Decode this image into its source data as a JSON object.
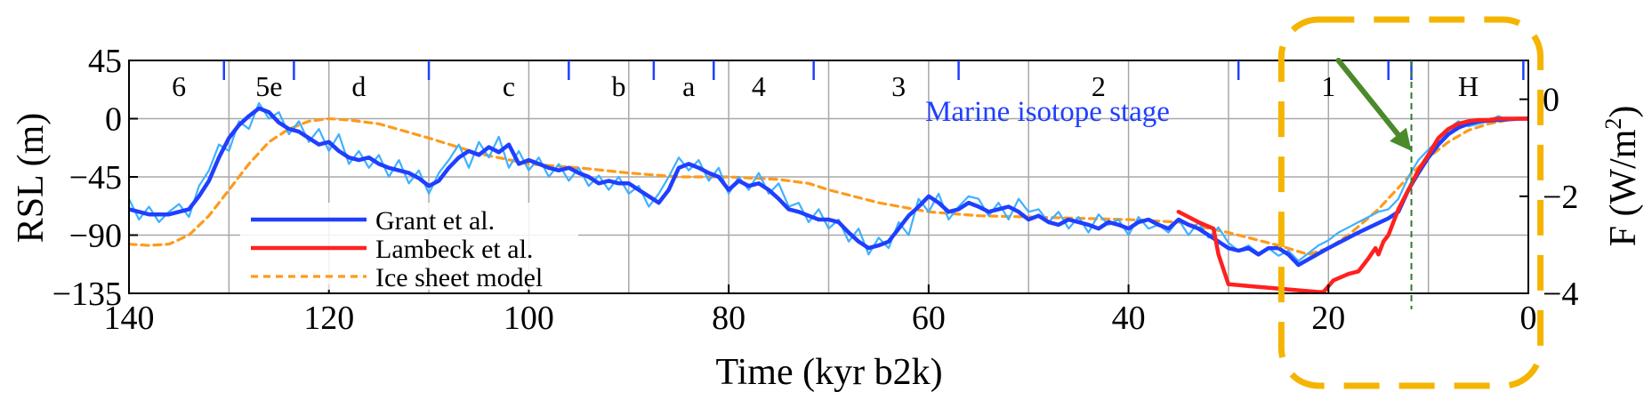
{
  "chart_data": {
    "type": "line",
    "title": "",
    "xlabel": "Time (kyr b2k)",
    "ylabel": "RSL (m)",
    "ylabel_right_base": "F (W/m",
    "ylabel_right_sup": "2",
    "ylabel_right_close": ")",
    "xlim": [
      140,
      0
    ],
    "ylim": [
      -135,
      45
    ],
    "ylim_right": [
      -4,
      0.8
    ],
    "x_ticks": [
      140,
      120,
      100,
      80,
      60,
      40,
      20,
      0
    ],
    "x_tick_labels": [
      "140",
      "120",
      "100",
      "80",
      "60",
      "40",
      "20",
      "0"
    ],
    "y_ticks": [
      45,
      0,
      -45,
      -90,
      -135
    ],
    "y_tick_labels": [
      "45",
      "0",
      "−45",
      "−90",
      "−135"
    ],
    "y_right_ticks": [
      0,
      -2,
      -4
    ],
    "y_right_tick_labels": [
      "0",
      "−2",
      "−4"
    ],
    "grid": true,
    "grid_x": [
      130,
      120,
      110,
      100,
      90,
      80,
      70,
      60,
      50,
      40,
      30,
      20,
      10
    ],
    "stage_label": "Marine isotope stage",
    "stages": [
      {
        "label": "6",
        "x": 135
      },
      {
        "label": "5e",
        "x": 126
      },
      {
        "label": "d",
        "x": 117
      },
      {
        "label": "c",
        "x": 102
      },
      {
        "label": "b",
        "x": 91
      },
      {
        "label": "a",
        "x": 84
      },
      {
        "label": "4",
        "x": 77
      },
      {
        "label": "3",
        "x": 63
      },
      {
        "label": "2",
        "x": 43
      },
      {
        "label": "1",
        "x": 20
      },
      {
        "label": "H",
        "x": 6
      }
    ],
    "stage_tick_positions": [
      130.5,
      123.5,
      110,
      96,
      87.5,
      81.5,
      71.5,
      57,
      29,
      14,
      11.7,
      0.5
    ],
    "legend_position": "bottom-left",
    "series": [
      {
        "name": "Grant et al.",
        "role": "smoothed",
        "color": "#1f3fff",
        "x": [
          140,
          138,
          136,
          134,
          133,
          132,
          131,
          130,
          129,
          128,
          127,
          126,
          125,
          124,
          123,
          122,
          121,
          120,
          119,
          118,
          117,
          116,
          115,
          114,
          113,
          112,
          111,
          110,
          109,
          108,
          107,
          106,
          105,
          104,
          103,
          102,
          101,
          100,
          99,
          98,
          97,
          96,
          95,
          94,
          93,
          92,
          91,
          90,
          89,
          88,
          87,
          86,
          85,
          84,
          83,
          82,
          81,
          80,
          79,
          78,
          77,
          76,
          75,
          74,
          73,
          72,
          71,
          70,
          69,
          68,
          67,
          66,
          65,
          64,
          63,
          62,
          61,
          60,
          59,
          58,
          57,
          56,
          55,
          54,
          53,
          52,
          51,
          50,
          49,
          48,
          47,
          46,
          45,
          44,
          43,
          42,
          41,
          40,
          39,
          38,
          37,
          36,
          35,
          34,
          33,
          32,
          31,
          30,
          29,
          28,
          27,
          26,
          25,
          24,
          23
        ],
        "y": [
          -70,
          -74,
          -74,
          -70,
          -60,
          -48,
          -30,
          -15,
          -5,
          2,
          8,
          5,
          -3,
          -8,
          -10,
          -15,
          -20,
          -18,
          -25,
          -30,
          -32,
          -30,
          -35,
          -38,
          -40,
          -42,
          -46,
          -52,
          -48,
          -38,
          -30,
          -25,
          -28,
          -22,
          -26,
          -20,
          -35,
          -32,
          -35,
          -38,
          -40,
          -38,
          -42,
          -45,
          -50,
          -48,
          -50,
          -50,
          -55,
          -60,
          -65,
          -55,
          -38,
          -35,
          -38,
          -42,
          -45,
          -55,
          -48,
          -52,
          -50,
          -55,
          -62,
          -70,
          -72,
          -75,
          -78,
          -78,
          -80,
          -88,
          -95,
          -100,
          -98,
          -95,
          -85,
          -75,
          -68,
          -60,
          -65,
          -72,
          -70,
          -65,
          -68,
          -72,
          -70,
          -68,
          -72,
          -78,
          -75,
          -80,
          -82,
          -78,
          -80,
          -82,
          -85,
          -80,
          -82,
          -85,
          -80,
          -78,
          -82,
          -85,
          -78,
          -82,
          -85,
          -90,
          -95,
          -100,
          -102,
          -100,
          -105,
          -100,
          -100,
          -105,
          -113
        ]
      },
      {
        "name": "",
        "role": "raw-continuation",
        "color": "#1f3fff",
        "x": [
          23,
          20,
          17,
          14,
          13,
          12,
          11,
          10,
          9,
          8,
          7,
          6,
          5,
          3,
          1,
          0
        ],
        "y": [
          -113,
          -100,
          -88,
          -77,
          -72,
          -55,
          -42,
          -30,
          -20,
          -12,
          -7,
          -4,
          -2,
          -1,
          0,
          0
        ]
      },
      {
        "name": "",
        "role": "raw",
        "color": "#3fb0ff",
        "x": [
          140,
          139,
          138,
          137,
          136,
          135,
          134,
          133,
          132,
          131,
          130,
          129,
          128,
          127,
          126,
          125,
          124,
          123,
          122,
          121,
          120,
          119,
          118,
          117,
          116,
          115,
          114,
          113,
          112,
          111,
          110,
          109,
          108,
          107,
          106,
          105,
          104,
          103,
          102,
          101,
          100,
          99,
          98,
          97,
          96,
          95,
          94,
          93,
          92,
          91,
          90,
          89,
          88,
          87,
          86,
          85,
          84,
          83,
          82,
          81,
          80,
          79,
          78,
          77,
          76,
          75,
          74,
          73,
          72,
          71,
          70,
          69,
          68,
          67,
          66,
          65,
          64,
          63,
          62,
          61,
          60,
          59,
          58,
          57,
          56,
          55,
          54,
          53,
          52,
          51,
          50,
          49,
          48,
          47,
          46,
          45,
          44,
          43,
          42,
          41,
          40,
          39,
          38,
          37,
          36,
          35,
          34,
          33,
          32,
          31,
          30,
          29,
          28,
          27,
          26,
          25,
          24,
          23,
          22,
          21,
          20,
          19,
          18,
          17,
          16,
          15,
          14,
          13,
          12,
          11,
          10,
          9,
          8,
          7,
          6,
          5,
          4,
          3,
          2,
          1,
          0
        ],
        "y": [
          -62,
          -78,
          -68,
          -80,
          -72,
          -66,
          -76,
          -52,
          -40,
          -20,
          -25,
          -2,
          -8,
          12,
          0,
          5,
          -12,
          -2,
          -18,
          -8,
          -25,
          -12,
          -35,
          -25,
          -38,
          -28,
          -45,
          -32,
          -50,
          -40,
          -58,
          -42,
          -32,
          -20,
          -38,
          -18,
          -30,
          -14,
          -38,
          -25,
          -40,
          -30,
          -45,
          -35,
          -48,
          -38,
          -52,
          -44,
          -55,
          -45,
          -58,
          -52,
          -68,
          -58,
          -45,
          -30,
          -40,
          -32,
          -48,
          -38,
          -58,
          -45,
          -55,
          -42,
          -58,
          -50,
          -68,
          -65,
          -80,
          -70,
          -85,
          -78,
          -95,
          -85,
          -105,
          -92,
          -100,
          -80,
          -90,
          -62,
          -72,
          -58,
          -78,
          -68,
          -60,
          -62,
          -75,
          -65,
          -78,
          -62,
          -72,
          -70,
          -80,
          -72,
          -85,
          -76,
          -88,
          -74,
          -82,
          -78,
          -90,
          -76,
          -85,
          -82,
          -88,
          -78,
          -90,
          -80,
          -92,
          -84,
          -96,
          -102,
          -98,
          -104,
          -100,
          -106,
          -102,
          -110,
          -104,
          -98,
          -94,
          -88,
          -84,
          -80,
          -76,
          -72,
          -70,
          -62,
          -45,
          -32,
          -24,
          -16,
          -8,
          -2,
          -6,
          -4,
          -2,
          2,
          -1,
          0,
          1
        ]
      },
      {
        "name": "Lambeck et al.",
        "role": "reconstruction",
        "color": "#ff2020",
        "x": [
          35,
          33,
          31.5,
          31,
          30,
          27,
          24,
          21,
          20.5,
          19.5,
          18,
          17,
          16,
          15.3,
          15,
          14.5,
          14,
          13.5,
          13,
          12,
          11,
          10,
          9,
          8,
          7,
          6,
          5,
          4,
          3,
          2,
          1,
          0
        ],
        "y": [
          -72,
          -80,
          -85,
          -105,
          -128,
          -130,
          -132,
          -134,
          -134,
          -125,
          -120,
          -118,
          -108,
          -100,
          -105,
          -95,
          -90,
          -80,
          -70,
          -55,
          -40,
          -28,
          -15,
          -8,
          -4,
          -2,
          -1,
          -1,
          0,
          0,
          0,
          0
        ]
      },
      {
        "name": "Ice sheet model",
        "role": "model",
        "color": "#ff9a1a",
        "x": [
          140,
          138,
          136,
          134,
          132,
          130,
          128,
          126,
          124,
          122,
          120,
          118,
          115,
          110,
          105,
          100,
          95,
          90,
          85,
          80,
          75,
          72,
          70,
          65,
          60,
          55,
          50,
          45,
          40,
          35,
          30,
          25,
          22,
          20,
          18,
          15,
          12,
          10,
          8,
          6,
          4,
          2,
          0
        ],
        "y": [
          -97,
          -98,
          -97,
          -90,
          -75,
          -55,
          -35,
          -18,
          -8,
          -2,
          0,
          -1,
          -4,
          -15,
          -27,
          -35,
          -38,
          -42,
          -45,
          -45,
          -47,
          -50,
          -55,
          -65,
          -72,
          -75,
          -76,
          -77,
          -78,
          -80,
          -88,
          -98,
          -105,
          -100,
          -90,
          -70,
          -45,
          -30,
          -18,
          -9,
          -4,
          -1,
          0
        ]
      }
    ],
    "annotations": [
      {
        "type": "highlight-box",
        "color": "#f5b400",
        "x_range": [
          24,
          -0.5
        ]
      },
      {
        "type": "arrow",
        "color": "#4a8a2a",
        "from": [
          19,
          45
        ],
        "to": [
          11.7,
          -25
        ]
      },
      {
        "type": "vline",
        "color": "#2e7d32",
        "x": 11.7
      }
    ]
  }
}
